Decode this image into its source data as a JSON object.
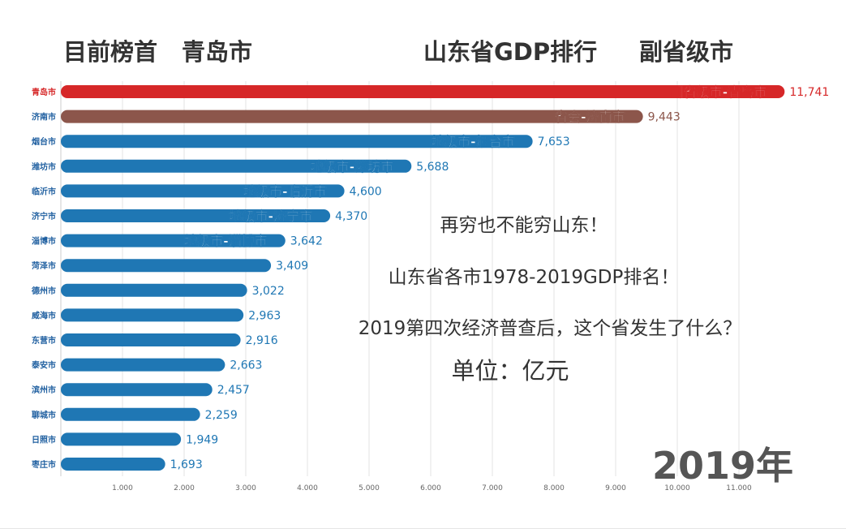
{
  "header": {
    "leader_label": "目前榜首",
    "leader_name": "青岛市",
    "title": "山东省GDP排行",
    "leader_category": "副省级市"
  },
  "overlay": {
    "line1": "再穷也不能穷山东！",
    "line2": "山东省各市1978-2019GDP排名！",
    "line3": "2019第四次经济普查后，这个省发生了什么？",
    "unit": "单位：亿元"
  },
  "year": "2019年",
  "colors": {
    "sub_provincial": "#d62728",
    "capital": "#8c564b",
    "prefecture": "#1f77b4",
    "label_text": "#1f5fa0"
  },
  "chart_data": {
    "type": "bar",
    "orientation": "horizontal",
    "title": "山东省GDP排行",
    "unit": "亿元",
    "categories": [
      "青岛市",
      "济南市",
      "烟台市",
      "潍坊市",
      "临沂市",
      "济宁市",
      "淄博市",
      "菏泽市",
      "德州市",
      "威海市",
      "东营市",
      "泰安市",
      "滨州市",
      "聊城市",
      "日照市",
      "枣庄市"
    ],
    "values": [
      11741,
      9443,
      7653,
      5688,
      4600,
      4370,
      3642,
      3409,
      3022,
      2963,
      2916,
      2663,
      2457,
      2259,
      1949,
      1693
    ],
    "value_labels": [
      "11,741",
      "9,443",
      "7,653",
      "5,688",
      "4,600",
      "4,370",
      "3,642",
      "3,409",
      "3,022",
      "2,963",
      "2,916",
      "2,663",
      "2,457",
      "2,259",
      "1,949",
      "1,693"
    ],
    "bar_labels": [
      "副省级市-青岛市",
      "省会-济南市",
      "地级市-烟台市",
      "地级市-潍坊市",
      "地级市-临沂市",
      "地级市-济宁市",
      "地级市-淄博市",
      "",
      "",
      "",
      "",
      "",
      "",
      "",
      "",
      ""
    ],
    "groups": [
      "sub_provincial",
      "capital",
      "prefecture",
      "prefecture",
      "prefecture",
      "prefecture",
      "prefecture",
      "prefecture",
      "prefecture",
      "prefecture",
      "prefecture",
      "prefecture",
      "prefecture",
      "prefecture",
      "prefecture",
      "prefecture"
    ],
    "x_ticks": [
      1000,
      2000,
      3000,
      4000,
      5000,
      6000,
      7000,
      8000,
      9000,
      10000,
      11000
    ],
    "x_tick_labels": [
      "1.000",
      "2.000",
      "3.000",
      "4.000",
      "5.000",
      "6.000",
      "7.000",
      "8.000",
      "9.000",
      "10.000",
      "11.000"
    ],
    "xlim": [
      0,
      11741
    ],
    "grid": true
  }
}
